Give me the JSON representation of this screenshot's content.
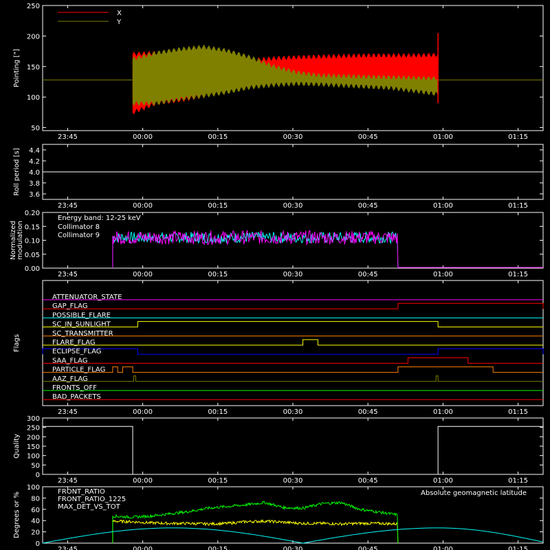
{
  "time_ticks": [
    "23:45",
    "00:00",
    "00:15",
    "00:30",
    "00:45",
    "01:00",
    "01:15"
  ],
  "chart_data": [
    {
      "type": "line",
      "panel": "pointing",
      "ylabel": "Pointing [\"]",
      "ylim": [
        45,
        250
      ],
      "yticks": [
        50,
        100,
        150,
        200,
        250
      ],
      "legend_placement": "top-left",
      "series": [
        {
          "name": "X",
          "color": "#ff0000",
          "t_start": "23:58",
          "t_end": "00:59",
          "upper": [
            170,
            172,
            170,
            166,
            163,
            160,
            163,
            165,
            166,
            167,
            168,
            168,
            168,
            169
          ],
          "lower": [
            75,
            90,
            95,
            102,
            110,
            118,
            122,
            124,
            123,
            121,
            119,
            116,
            112,
            105
          ]
        },
        {
          "name": "Y",
          "color": "#808000",
          "t_start": "23:58",
          "t_end": "00:59",
          "upper": [
            162,
            172,
            178,
            182,
            176,
            165,
            150,
            140,
            135,
            134,
            133,
            132,
            131,
            130
          ],
          "lower": [
            90,
            90,
            97,
            102,
            108,
            116,
            120,
            122,
            121,
            119,
            117,
            115,
            110,
            105
          ]
        }
      ],
      "reference_line": 128
    },
    {
      "type": "line",
      "panel": "roll",
      "ylabel": "Roll period [s]",
      "ylim": [
        3.5,
        4.5
      ],
      "yticks": [
        "3.6",
        "3.8",
        "4.0",
        "4.2",
        "4.4"
      ],
      "series": [
        {
          "name": "",
          "color": "#ffffff",
          "value": 4.0
        }
      ]
    },
    {
      "type": "line",
      "panel": "modulation",
      "ylabel": "Normalized modulation",
      "ylim": [
        0,
        0.2
      ],
      "yticks": [
        "0.00",
        "0.05",
        "0.10",
        "0.15",
        "0.20"
      ],
      "annotation": "Energy band: 12-25 keV",
      "series": [
        {
          "name": "Collimator 8",
          "color": "#00ffff",
          "t_start": "23:54",
          "t_end": "00:51",
          "mean": 0.11,
          "spread": 0.02
        },
        {
          "name": "Collimator 9",
          "color": "#ff00ff",
          "t_start": "23:54",
          "t_end": "00:51",
          "mean": 0.11,
          "spread": 0.025
        }
      ]
    },
    {
      "type": "line",
      "panel": "flags",
      "ylabel": "Flags",
      "flags": [
        {
          "name": "ATTENUATOR_STATE",
          "color": "#ff00ff",
          "high": []
        },
        {
          "name": "GAP_FLAG",
          "color": "#ff0000",
          "high": [
            [
              "00:51",
              "01:20"
            ]
          ]
        },
        {
          "name": "POSSIBLE_FLARE",
          "color": "#00ffff",
          "high": []
        },
        {
          "name": "SC_IN_SUNLIGHT",
          "color": "#ffff00",
          "high": [
            [
              "23:59",
              "00:59"
            ]
          ]
        },
        {
          "name": "SC_TRANSMITTER",
          "color": "#ff8000",
          "high": []
        },
        {
          "name": "FLARE_FLAG",
          "color": "#ffff00",
          "high": [
            [
              "00:32",
              "00:35"
            ]
          ]
        },
        {
          "name": "ECLIPSE_FLAG",
          "color": "#0000ff",
          "high": [
            [
              "23:40",
              "23:59"
            ],
            [
              "00:59",
              "01:20"
            ]
          ]
        },
        {
          "name": "SAA_FLAG",
          "color": "#ff0000",
          "high": [
            [
              "00:53",
              "01:05"
            ]
          ]
        },
        {
          "name": "PARTICLE_FLAG",
          "color": "#ff8000",
          "high": [
            [
              "23:54",
              "23:55"
            ],
            [
              "23:56",
              "23:58"
            ],
            [
              "00:51",
              "01:10"
            ]
          ]
        },
        {
          "name": "AAZ_FLAG",
          "color": "#808000",
          "high": [
            [
              "23:58.2",
              "23:58.6"
            ],
            [
              "00:58.6",
              "00:59"
            ]
          ]
        },
        {
          "name": "FRONTS_OFF",
          "color": "#00ff00",
          "high": []
        },
        {
          "name": "BAD_PACKETS",
          "color": "#ff0000",
          "high": []
        }
      ]
    },
    {
      "type": "line",
      "panel": "quality",
      "ylabel": "Quality",
      "ylim": [
        0,
        300
      ],
      "yticks": [
        "0",
        "50",
        "100",
        "150",
        "200",
        "250",
        "300"
      ],
      "series": [
        {
          "name": "",
          "color": "#ffffff",
          "points": [
            [
              "23:40",
              255
            ],
            [
              "23:58",
              255
            ],
            [
              "23:58",
              0
            ],
            [
              "00:59",
              0
            ],
            [
              "00:59",
              255
            ],
            [
              "01:20",
              255
            ]
          ]
        }
      ]
    },
    {
      "type": "line",
      "panel": "geo",
      "ylabel": "Degrees or %",
      "ylim": [
        0,
        100
      ],
      "yticks": [
        "0",
        "20",
        "40",
        "60",
        "80",
        "100"
      ],
      "series": [
        {
          "name": "FRONT_RATIO",
          "color": "#ffff00",
          "t_start": "23:54",
          "t_end": "00:51",
          "values": [
            39,
            38,
            36,
            35,
            35,
            34,
            35,
            38,
            39,
            37,
            35,
            35,
            34,
            35,
            35,
            34
          ]
        },
        {
          "name": "FRONT_RATIO_1225",
          "color": "#00ff00",
          "t_start": "23:54",
          "t_end": "00:51",
          "values": [
            48,
            46,
            48,
            52,
            56,
            62,
            65,
            68,
            72,
            63,
            62,
            70,
            72,
            60,
            55,
            50
          ]
        },
        {
          "name": "MAX_DET_VS_TOT",
          "color": "#ff8000",
          "t_start": "23:54",
          "t_end": "00:51",
          "values": []
        },
        {
          "name": "Absolute geomagnetic latitude",
          "color": "#00ffff",
          "points": [
            [
              "23:40",
              0
            ],
            [
              "00:06",
              27
            ],
            [
              "00:32",
              0
            ],
            [
              "00:59",
              27
            ],
            [
              "01:20",
              2
            ]
          ]
        }
      ]
    }
  ]
}
